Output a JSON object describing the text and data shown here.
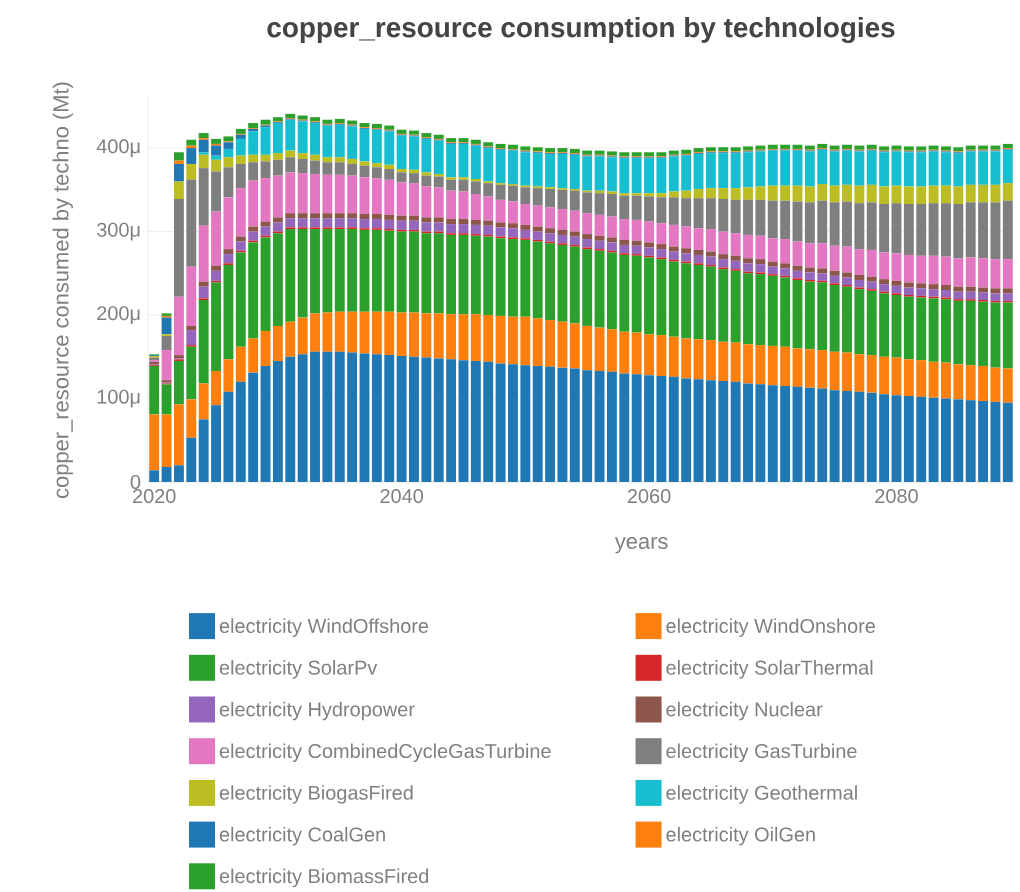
{
  "chart_data": {
    "type": "bar",
    "stacked": true,
    "title": "copper_resource consumption by technologies",
    "xlabel": "years",
    "ylabel": "copper_resource consumed by techno (Mt)",
    "grid": "y",
    "legend": "bottom",
    "xlim": [
      2019.5,
      2089.5
    ],
    "xticks": [
      2020,
      2040,
      2060,
      2080
    ],
    "ylim": [
      0,
      460
    ],
    "yticks": [
      0,
      {
        "value": 100,
        "label": "100μ"
      },
      {
        "value": 200,
        "label": "200μ"
      },
      {
        "value": 300,
        "label": "300μ"
      },
      {
        "value": 400,
        "label": "400μ"
      }
    ],
    "x": [
      2020,
      2021,
      2022,
      2023,
      2024,
      2025,
      2026,
      2027,
      2028,
      2029,
      2030,
      2031,
      2032,
      2033,
      2034,
      2035,
      2036,
      2037,
      2038,
      2039,
      2040,
      2041,
      2042,
      2043,
      2044,
      2045,
      2046,
      2047,
      2048,
      2049,
      2050,
      2051,
      2052,
      2053,
      2054,
      2055,
      2056,
      2057,
      2058,
      2059,
      2060,
      2061,
      2062,
      2063,
      2064,
      2065,
      2066,
      2067,
      2068,
      2069,
      2070,
      2071,
      2072,
      2073,
      2074,
      2075,
      2076,
      2077,
      2078,
      2079,
      2080,
      2081,
      2082,
      2083,
      2084,
      2085,
      2086,
      2087,
      2088,
      2089
    ],
    "series": [
      {
        "name": "electricity WindOffshore",
        "color": "#1f77b4",
        "values": [
          14,
          18,
          20,
          53,
          75,
          92,
          108,
          120,
          131,
          139,
          145,
          150,
          153,
          156,
          156,
          156,
          155,
          154,
          153,
          152,
          151,
          150,
          149,
          148,
          147,
          146,
          145,
          144,
          142,
          141,
          140,
          139,
          138,
          137,
          136,
          134,
          133,
          132,
          130,
          129,
          128,
          127,
          126,
          124,
          123,
          122,
          121,
          120,
          118,
          117,
          116,
          115,
          114,
          113,
          112,
          110,
          109,
          108,
          107,
          105,
          104,
          103,
          102,
          101,
          100,
          99,
          98,
          97,
          96,
          95
        ]
      },
      {
        "name": "electricity WindOnshore",
        "color": "#ff7f0e",
        "values": [
          67,
          63,
          73,
          46,
          43,
          41,
          39,
          42,
          41,
          42,
          42,
          42,
          44,
          46,
          47,
          48,
          49,
          50,
          51,
          52,
          52,
          53,
          53,
          54,
          54,
          55,
          56,
          56,
          57,
          57,
          58,
          57,
          56,
          55,
          54,
          53,
          52,
          51,
          50,
          50,
          49,
          49,
          48,
          48,
          48,
          48,
          47,
          47,
          47,
          47,
          47,
          47,
          46,
          46,
          46,
          46,
          46,
          45,
          45,
          45,
          45,
          44,
          44,
          43,
          43,
          42,
          42,
          42,
          41,
          41
        ]
      },
      {
        "name": "electricity SolarPv",
        "color": "#2ca02c",
        "values": [
          58,
          36,
          52,
          63,
          100,
          106,
          113,
          113,
          115,
          112,
          111,
          111,
          106,
          101,
          100,
          99,
          99,
          98,
          98,
          97,
          97,
          97,
          96,
          96,
          95,
          95,
          94,
          94,
          93,
          93,
          92,
          92,
          92,
          92,
          92,
          92,
          92,
          92,
          92,
          92,
          92,
          91,
          90,
          90,
          89,
          88,
          87,
          86,
          85,
          85,
          84,
          83,
          82,
          81,
          81,
          80,
          79,
          78,
          77,
          76,
          75,
          75,
          75,
          76,
          76,
          76,
          77,
          77,
          78,
          79
        ]
      },
      {
        "name": "electricity SolarThermal",
        "color": "#d62728",
        "values": [
          1,
          1,
          2,
          2,
          2,
          2,
          2,
          2,
          2,
          2,
          2,
          2,
          2,
          2,
          2,
          2,
          2,
          2,
          2,
          2,
          2,
          2,
          2,
          2,
          2,
          2,
          2,
          2,
          2,
          2,
          2,
          2,
          2,
          2,
          2,
          2,
          2,
          2,
          2,
          2,
          2,
          2,
          2,
          2,
          2,
          2,
          2,
          2,
          2,
          2,
          2,
          2,
          2,
          2,
          2,
          2,
          2,
          2,
          2,
          2,
          2,
          2,
          2,
          2,
          2,
          2,
          2,
          2,
          2,
          2
        ]
      },
      {
        "name": "electricity Hydropower",
        "color": "#9467bd",
        "values": [
          1,
          1,
          1,
          18,
          14,
          12,
          11,
          11,
          11,
          11,
          11,
          11,
          11,
          11,
          11,
          11,
          11,
          11,
          11,
          11,
          11,
          11,
          11,
          11,
          11,
          11,
          11,
          11,
          11,
          11,
          10,
          10,
          10,
          10,
          10,
          10,
          10,
          10,
          10,
          10,
          10,
          10,
          10,
          10,
          10,
          10,
          10,
          10,
          10,
          10,
          9,
          9,
          9,
          9,
          9,
          9,
          9,
          9,
          9,
          9,
          9,
          9,
          9,
          9,
          9,
          9,
          9,
          9,
          9,
          9
        ]
      },
      {
        "name": "electricity Nuclear",
        "color": "#8c564b",
        "values": [
          3,
          3,
          4,
          5,
          6,
          6,
          6,
          6,
          6,
          6,
          6,
          6,
          6,
          6,
          6,
          6,
          6,
          6,
          6,
          6,
          6,
          6,
          6,
          6,
          6,
          6,
          6,
          6,
          6,
          6,
          6,
          6,
          6,
          6,
          6,
          6,
          6,
          6,
          6,
          6,
          6,
          6,
          6,
          6,
          6,
          6,
          6,
          6,
          6,
          6,
          6,
          6,
          6,
          6,
          6,
          6,
          6,
          6,
          6,
          6,
          6,
          6,
          6,
          6,
          6,
          6,
          6,
          6,
          6,
          6
        ]
      },
      {
        "name": "electricity CombinedCycleGasTurbine",
        "color": "#e377c2",
        "values": [
          2,
          36,
          70,
          71,
          67,
          65,
          62,
          58,
          55,
          52,
          50,
          49,
          48,
          47,
          46,
          46,
          45,
          44,
          43,
          42,
          40,
          39,
          37,
          36,
          34,
          33,
          31,
          29,
          27,
          26,
          25,
          25,
          25,
          25,
          25,
          25,
          25,
          25,
          25,
          25,
          25,
          25,
          26,
          26,
          26,
          27,
          27,
          27,
          28,
          28,
          28,
          29,
          29,
          29,
          30,
          30,
          31,
          31,
          32,
          32,
          33,
          33,
          33,
          34,
          34,
          34,
          35,
          35,
          35,
          35
        ]
      },
      {
        "name": "electricity GasTurbine",
        "color": "#7f7f7f",
        "values": [
          3,
          17,
          117,
          104,
          69,
          48,
          36,
          29,
          22,
          20,
          19,
          18,
          17,
          16,
          15,
          15,
          14,
          14,
          13,
          13,
          12,
          12,
          13,
          13,
          13,
          14,
          15,
          16,
          18,
          19,
          20,
          21,
          22,
          23,
          24,
          25,
          26,
          27,
          28,
          29,
          30,
          31,
          33,
          34,
          36,
          37,
          39,
          40,
          42,
          43,
          45,
          46,
          48,
          49,
          51,
          52,
          54,
          55,
          57,
          58,
          60,
          61,
          62,
          63,
          64,
          65,
          66,
          67,
          68,
          70
        ]
      },
      {
        "name": "electricity BiogasFired",
        "color": "#bcbd22",
        "values": [
          2,
          2,
          21,
          19,
          16,
          14,
          12,
          10,
          9,
          8,
          8,
          8,
          7,
          7,
          6,
          6,
          6,
          5,
          5,
          5,
          4,
          4,
          4,
          3,
          3,
          3,
          3,
          2,
          2,
          2,
          2,
          2,
          2,
          2,
          2,
          2,
          3,
          3,
          3,
          3,
          4,
          5,
          7,
          9,
          11,
          12,
          13,
          14,
          15,
          16,
          18,
          18,
          19,
          19,
          20,
          20,
          20,
          21,
          21,
          21,
          21,
          21,
          21,
          21,
          21,
          21,
          21,
          21,
          21,
          21
        ]
      },
      {
        "name": "electricity Geothermal",
        "color": "#17becf",
        "values": [
          0,
          0,
          0,
          0,
          3,
          5,
          10,
          20,
          28,
          33,
          36,
          37,
          38,
          38,
          38,
          39,
          39,
          39,
          40,
          40,
          40,
          40,
          40,
          40,
          40,
          40,
          40,
          40,
          40,
          40,
          40,
          40,
          40,
          41,
          41,
          41,
          41,
          41,
          42,
          42,
          42,
          42,
          42,
          42,
          42,
          42,
          42,
          42,
          42,
          42,
          42,
          42,
          42,
          42,
          41,
          41,
          41,
          41,
          41,
          41,
          41,
          41,
          41,
          41,
          40,
          40,
          40,
          40,
          40,
          40
        ]
      },
      {
        "name": "electricity CoalGen",
        "color": "#1f77b4",
        "values": [
          1,
          20,
          21,
          19,
          15,
          12,
          8,
          5,
          3,
          2,
          1,
          1,
          1,
          1,
          1,
          1,
          1,
          1,
          1,
          1,
          1,
          1,
          1,
          1,
          1,
          1,
          1,
          1,
          1,
          1,
          1,
          1,
          1,
          1,
          1,
          1,
          1,
          1,
          1,
          1,
          1,
          1,
          1,
          1,
          1,
          1,
          1,
          1,
          1,
          1,
          1,
          1,
          1,
          1,
          1,
          1,
          1,
          1,
          1,
          1,
          1,
          1,
          1,
          1,
          1,
          1,
          1,
          1,
          1,
          1
        ]
      },
      {
        "name": "electricity OilGen",
        "color": "#ff7f0e",
        "values": [
          0,
          2,
          4,
          3,
          2,
          2,
          1,
          1,
          1,
          1,
          1,
          1,
          1,
          1,
          1,
          1,
          1,
          1,
          1,
          1,
          1,
          1,
          1,
          1,
          1,
          1,
          1,
          1,
          1,
          1,
          1,
          1,
          1,
          1,
          1,
          1,
          1,
          1,
          1,
          1,
          1,
          1,
          1,
          1,
          1,
          1,
          1,
          1,
          1,
          1,
          1,
          1,
          1,
          1,
          1,
          1,
          1,
          1,
          1,
          1,
          1,
          1,
          1,
          1,
          1,
          1,
          1,
          1,
          1,
          1
        ]
      },
      {
        "name": "electricity BiomassFired",
        "color": "#2ca02c",
        "values": [
          1,
          3,
          10,
          7,
          6,
          6,
          6,
          6,
          6,
          6,
          5,
          5,
          5,
          5,
          5,
          5,
          5,
          5,
          5,
          5,
          5,
          5,
          5,
          5,
          5,
          5,
          5,
          5,
          5,
          5,
          5,
          5,
          5,
          5,
          5,
          5,
          5,
          5,
          5,
          5,
          5,
          5,
          5,
          5,
          5,
          5,
          5,
          5,
          5,
          5,
          5,
          5,
          5,
          5,
          5,
          5,
          5,
          5,
          5,
          5,
          5,
          5,
          5,
          5,
          5,
          5,
          5,
          5,
          5,
          5
        ]
      }
    ]
  }
}
